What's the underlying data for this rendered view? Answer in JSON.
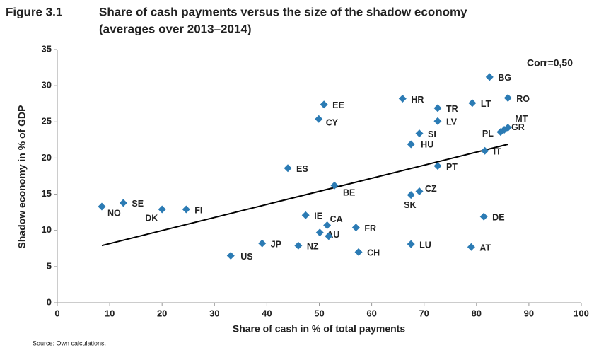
{
  "chart_data": {
    "type": "scatter",
    "figure_label": "Figure 3.1",
    "title": "Share of cash payments versus the size of the shadow economy",
    "subtitle": "(averages over 2013–2014)",
    "x_label": "Share of cash in % of total payments",
    "y_label": "Shadow economy in % of GDP",
    "annotation": "Corr=0,50",
    "source": "Source: Own calculations.",
    "color": "#2b7bb4",
    "categories": [
      "NO",
      "SE",
      "DK",
      "FI",
      "US",
      "JP",
      "NZ",
      "ES",
      "IE",
      "CA",
      "AU",
      null,
      "FR",
      "CH",
      "BE",
      "EE",
      "CY",
      "HR",
      "TR",
      "LV",
      "SI",
      "HU",
      "PT",
      "CZ",
      "SK",
      "LU",
      "LT",
      "BG",
      "RO",
      "MT",
      "GR",
      "PL",
      "IT",
      "DE",
      "AT"
    ],
    "x": [
      8.5,
      12.6,
      20.0,
      24.6,
      33.1,
      39.1,
      46.0,
      44.0,
      47.4,
      51.5,
      50.1,
      51.8,
      57.0,
      57.5,
      52.9,
      50.9,
      49.9,
      65.9,
      72.6,
      72.6,
      69.1,
      67.5,
      72.6,
      69.1,
      67.5,
      67.5,
      79.2,
      82.5,
      86.0,
      86.0,
      85.3,
      84.6,
      81.6,
      81.4,
      79.0
    ],
    "y": [
      13.3,
      13.8,
      12.9,
      12.9,
      6.5,
      8.2,
      7.9,
      18.6,
      12.1,
      10.7,
      9.7,
      9.2,
      10.4,
      7.0,
      16.2,
      27.4,
      25.4,
      28.2,
      26.9,
      25.1,
      23.4,
      21.9,
      18.9,
      15.4,
      14.9,
      8.1,
      27.6,
      31.2,
      28.3,
      24.2,
      23.9,
      23.6,
      21.0,
      11.9,
      7.7
    ],
    "trendline": {
      "x": [
        8.5,
        86
      ],
      "y": [
        7.9,
        21.9
      ],
      "color": "#000000"
    },
    "xlim": [
      0,
      100
    ],
    "xticks": [
      0,
      10,
      20,
      30,
      40,
      50,
      60,
      70,
      80,
      90,
      100
    ],
    "ylim": [
      0,
      35
    ],
    "yticks": [
      0,
      5,
      10,
      15,
      20,
      25,
      30,
      35
    ]
  }
}
